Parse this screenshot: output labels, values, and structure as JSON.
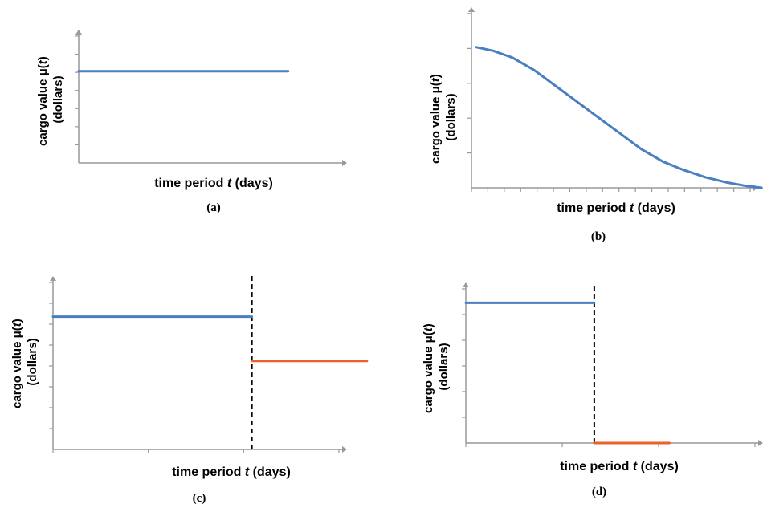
{
  "figure_captions": [
    "(a)",
    "(b)",
    "(c)",
    "(d)"
  ],
  "colors": {
    "axis": "#999999",
    "series_1": "#4a7fc1",
    "series_2": "#e8622a",
    "marker": "#000000"
  },
  "chart_data": [
    {
      "type": "line",
      "caption": "(a)",
      "ylabel": {
        "text": "cargo value μ(",
        "var": "t",
        "close": ")",
        "unit": "(dollars)"
      },
      "xlabel": {
        "text": "time period ",
        "var": "t",
        "unit": " (days)"
      },
      "xlim": [
        0,
        10
      ],
      "ylim": [
        0,
        7
      ],
      "y_ticks": 7,
      "x_ticks": 0,
      "series": [
        {
          "color_key": "series_1",
          "points": [
            [
              0,
              5
            ],
            [
              8,
              5
            ]
          ]
        }
      ],
      "vlines": []
    },
    {
      "type": "line",
      "caption": "(b)",
      "ylabel": {
        "text": "cargo value μ(",
        "var": "t",
        "close": ")",
        "unit": "(dollars)"
      },
      "xlabel": {
        "text": "time period ",
        "var": "t",
        "unit": " (days)"
      },
      "xlim": [
        0,
        17
      ],
      "ylim": [
        0,
        5
      ],
      "y_ticks": 5,
      "x_ticks": 17,
      "series": [
        {
          "color_key": "series_1",
          "points": [
            [
              0.3,
              4.0
            ],
            [
              1.3,
              3.9
            ],
            [
              2.5,
              3.7
            ],
            [
              3.8,
              3.35
            ],
            [
              5.1,
              2.9
            ],
            [
              6.4,
              2.45
            ],
            [
              7.7,
              2.0
            ],
            [
              9.0,
              1.55
            ],
            [
              10.3,
              1.1
            ],
            [
              11.6,
              0.75
            ],
            [
              12.9,
              0.5
            ],
            [
              14.2,
              0.3
            ],
            [
              15.5,
              0.15
            ],
            [
              16.7,
              0.05
            ],
            [
              17.6,
              0.0
            ]
          ]
        }
      ],
      "vlines": []
    },
    {
      "type": "line",
      "caption": "(c)",
      "ylabel": {
        "text": "cargo value μ(",
        "var": "t",
        "close": ")",
        "unit": "(dollars)"
      },
      "xlabel": {
        "text": "time period ",
        "var": "t",
        "unit": " (days)"
      },
      "xlim": [
        0,
        6
      ],
      "ylim": [
        0,
        8
      ],
      "y_ticks": 8,
      "x_ticks": 3,
      "series": [
        {
          "color_key": "series_1",
          "points": [
            [
              0,
              6.3
            ],
            [
              4.15,
              6.3
            ]
          ]
        },
        {
          "color_key": "series_2",
          "points": [
            [
              4.15,
              4.2
            ],
            [
              6.55,
              4.2
            ]
          ]
        }
      ],
      "vlines": [
        {
          "x": 4.15,
          "y": [
            0,
            8.3
          ]
        }
      ]
    },
    {
      "type": "line",
      "caption": "(d)",
      "ylabel": {
        "text": "cargo value μ(",
        "var": "t",
        "close": ")",
        "unit": "(dollars)"
      },
      "xlabel": {
        "text": "time period ",
        "var": "t",
        "unit": " (days)"
      },
      "xlim": [
        0,
        12
      ],
      "ylim": [
        0,
        6
      ],
      "y_ticks": 6,
      "x_ticks": 3,
      "series": [
        {
          "color_key": "series_1",
          "points": [
            [
              0,
              5.4
            ],
            [
              5.3,
              5.4
            ]
          ]
        },
        {
          "color_key": "series_2",
          "points": [
            [
              5.3,
              0
            ],
            [
              8.4,
              0
            ]
          ]
        }
      ],
      "vlines": [
        {
          "x": 5.3,
          "y": [
            0,
            6.2
          ]
        }
      ]
    }
  ]
}
